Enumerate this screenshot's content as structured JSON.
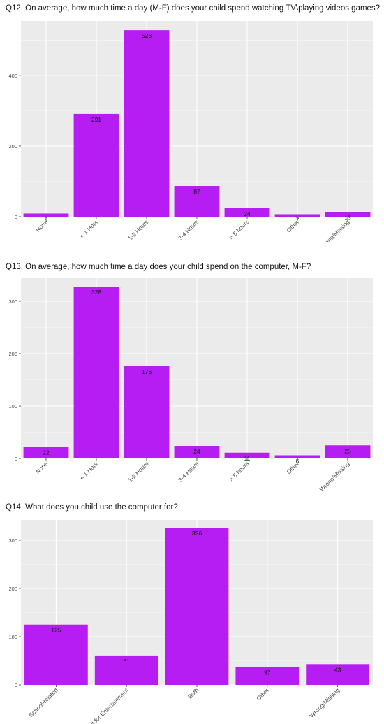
{
  "colors": {
    "bar": "#b51df2",
    "panel": "#ebebeb",
    "grid_major": "#ffffff",
    "text": "#222222",
    "tick_text": "#4d4d4d"
  },
  "chart_data": [
    {
      "type": "bar",
      "title": "Q12. On average, how much time a day (M-F) does your child spend watching TV\\playing videos games?",
      "categories": [
        "None",
        "< 1 Hour",
        "1-2 Hours",
        "3-4 Hours",
        "> 5 hours",
        "Other",
        "Wrong/Missing"
      ],
      "values": [
        9,
        291,
        528,
        87,
        24,
        7,
        13
      ],
      "data_labels": [
        "9",
        "291",
        "528",
        "87",
        "24",
        "7",
        "13"
      ],
      "yticks": [
        0,
        200,
        400
      ],
      "ytick_labels": [
        "0",
        "200",
        "400"
      ],
      "ylim": [
        0,
        554
      ],
      "xlabel": "",
      "ylabel": "",
      "grid": true
    },
    {
      "type": "bar",
      "title": "Q13. On average, how much time a day does your child spend on the computer, M-F?",
      "categories": [
        "None",
        "< 1 Hour",
        "1-2 Hours",
        "3-4 Hours",
        "> 5 hours",
        "Other",
        "Wrong/Missing"
      ],
      "values": [
        22,
        328,
        176,
        24,
        11,
        6,
        25
      ],
      "data_labels": [
        "22",
        "328",
        "176",
        "24",
        "11",
        "6",
        "25"
      ],
      "yticks": [
        0,
        100,
        200,
        300
      ],
      "ytick_labels": [
        "0",
        "100",
        "200",
        "300"
      ],
      "ylim": [
        0,
        344
      ],
      "xlabel": "",
      "ylabel": "",
      "grid": true
    },
    {
      "type": "bar",
      "title": "Q14. What does you child use the computer for?",
      "categories": [
        "School-related",
        "Internet for Entertainment",
        "Both",
        "Other",
        "Wrong/Missing"
      ],
      "values": [
        125,
        61,
        326,
        37,
        43
      ],
      "data_labels": [
        "125",
        "61",
        "326",
        "37",
        "43"
      ],
      "yticks": [
        0,
        100,
        200,
        300
      ],
      "ytick_labels": [
        "0",
        "100",
        "200",
        "300"
      ],
      "ylim": [
        0,
        342
      ],
      "xlabel": "",
      "ylabel": "",
      "grid": true
    }
  ]
}
